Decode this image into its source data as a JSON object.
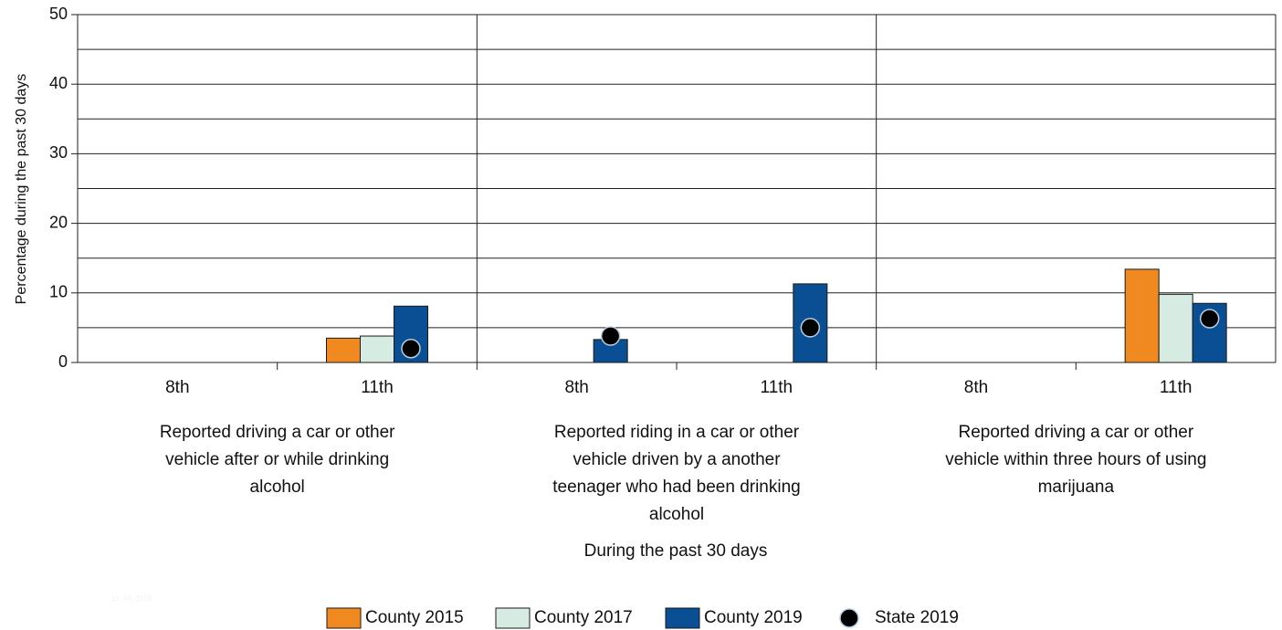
{
  "chart_data": {
    "type": "bar",
    "x_label": "During the past 30 days",
    "y_label": "Percentage during the past 30 days",
    "footnote": "11_34_2019",
    "categories": [
      "8th",
      "11th",
      "8th",
      "11th",
      "8th",
      "11th"
    ],
    "groups": [
      "Reported driving a car or other vehicle after or while drinking alcohol",
      "Reported riding in a car or other vehicle driven by a another teenager who had been drinking alcohol",
      "Reported driving a car or other vehicle within three hours of using marijuana"
    ],
    "series": [
      {
        "name": "County 2015",
        "color": "#f0891f",
        "values": [
          null,
          3.5,
          null,
          null,
          null,
          13.4
        ]
      },
      {
        "name": "County 2017",
        "color": "#d6ebe1",
        "values": [
          null,
          3.8,
          null,
          null,
          null,
          9.8
        ]
      },
      {
        "name": "County 2019",
        "color": "#0a4f94",
        "values": [
          null,
          8.1,
          3.3,
          11.3,
          null,
          8.5
        ]
      },
      {
        "name": "State 2019",
        "color": "#000000",
        "type": "scatter",
        "values": [
          null,
          2.0,
          3.8,
          5.0,
          null,
          6.3
        ]
      }
    ],
    "ylim": [
      0,
      50
    ],
    "yticks": [
      0,
      10,
      20,
      30,
      40,
      50
    ],
    "minor_yticks": [
      5,
      15,
      25,
      35,
      45
    ],
    "grid": true
  }
}
